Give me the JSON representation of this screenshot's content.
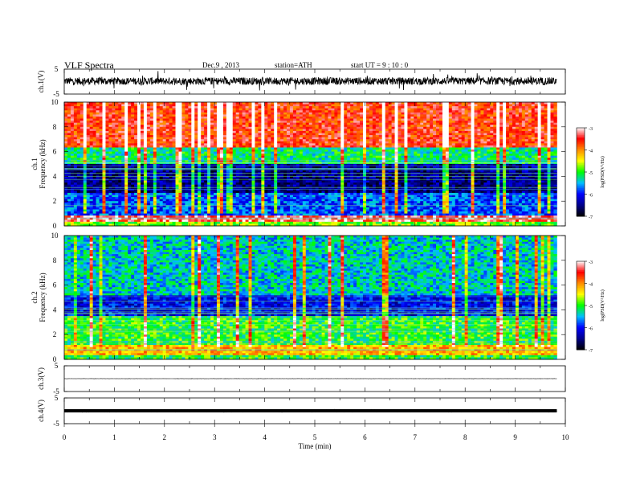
{
  "header": {
    "title": "VLF  Spectra",
    "date": "Dec.9  , 2013",
    "station": "station=ATH",
    "start": "start  UT  =   9  : 10 : 0"
  },
  "colorbar": {
    "label": "log(PSD(V²/Hz)",
    "ticks": [
      "-3",
      "-4",
      "-5",
      "-6",
      "-7"
    ],
    "colors": [
      "#000000",
      "#00008b",
      "#0000ff",
      "#00bfff",
      "#00ff00",
      "#ffff00",
      "#ff8c00",
      "#ff0000",
      "#ffffff"
    ]
  },
  "chart_data": [
    {
      "type": "line",
      "title": "",
      "ylabel": "ch.1(V)",
      "ylim": [
        -5,
        5
      ],
      "ytick_labels": [
        "5",
        "-5"
      ],
      "xlim": [
        0,
        10
      ],
      "x_end": 9.83,
      "description_level": 0.2,
      "amplitude": 1.5
    },
    {
      "type": "heatmap",
      "channel_label": "ch.1",
      "ylabel": "Frequency  (kHz)",
      "ylim": [
        0,
        10
      ],
      "ytick_labels": [
        "0",
        "2",
        "4",
        "6",
        "8",
        "10"
      ],
      "xlim": [
        0,
        10
      ],
      "x_end": 9.83,
      "zlim": [
        -7,
        -3
      ],
      "bands": [
        {
          "f0": 0.0,
          "f1": 0.35,
          "level": -4.8
        },
        {
          "f0": 0.35,
          "f1": 0.9,
          "level": -3.3
        },
        {
          "f0": 0.9,
          "f1": 2.6,
          "level": -5.8
        },
        {
          "f0": 2.6,
          "f1": 5.0,
          "level": -6.5
        },
        {
          "f0": 5.0,
          "f1": 6.4,
          "level": -5.2
        },
        {
          "f0": 6.4,
          "f1": 10.0,
          "level": -3.6
        }
      ]
    },
    {
      "type": "heatmap",
      "channel_label": "ch.2",
      "ylabel": "Frequency  (kHz)",
      "ylim": [
        0,
        10
      ],
      "ytick_labels": [
        "0",
        "2",
        "4",
        "6",
        "8",
        "10"
      ],
      "xlim": [
        0,
        10
      ],
      "x_end": 9.83,
      "zlim": [
        -7,
        -3
      ],
      "bands": [
        {
          "f0": 0.0,
          "f1": 0.4,
          "level": -5.0
        },
        {
          "f0": 0.4,
          "f1": 1.2,
          "level": -4.2
        },
        {
          "f0": 1.2,
          "f1": 3.5,
          "level": -5.0
        },
        {
          "f0": 3.5,
          "f1": 5.2,
          "level": -6.1
        },
        {
          "f0": 5.2,
          "f1": 10.0,
          "level": -5.4
        }
      ]
    },
    {
      "type": "line",
      "ylabel": "ch.3(V)",
      "ylim": [
        -5,
        5
      ],
      "ytick_labels": [
        "5",
        "-5"
      ],
      "xlim": [
        0,
        10
      ],
      "x_end": 9.83,
      "level": 0.0,
      "amplitude": 0.05
    },
    {
      "type": "line",
      "ylabel": "ch.4(V)",
      "ylim": [
        -5,
        5
      ],
      "ytick_labels": [
        "5",
        "-5"
      ],
      "xlim": [
        0,
        10
      ],
      "x_end": 9.83,
      "level": 0.0,
      "amplitude": 0.35,
      "xlabel": "Time  (min)",
      "xtick_labels": [
        "0",
        "1",
        "2",
        "3",
        "4",
        "5",
        "6",
        "7",
        "8",
        "9",
        "10"
      ]
    }
  ]
}
